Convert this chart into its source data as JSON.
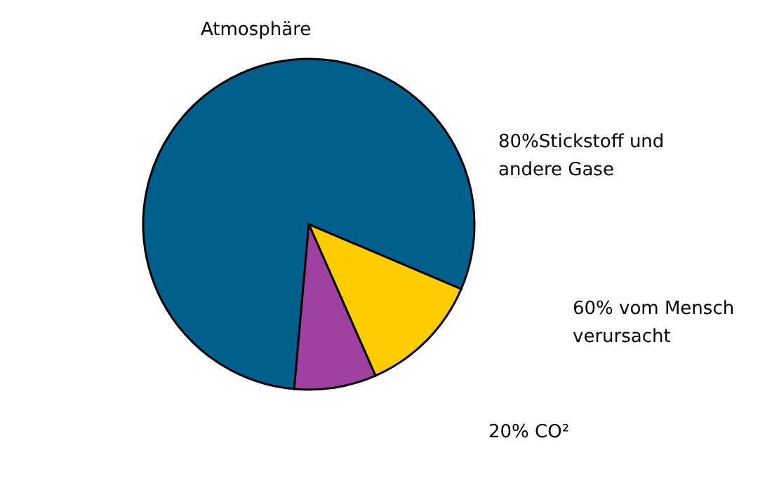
{
  "chart_data": {
    "type": "pie",
    "title": "Atmosphäre",
    "categories": [
      null,
      null,
      null
    ],
    "values": [
      80,
      12,
      8
    ],
    "colors": [
      "#005f8c",
      "#ffcc00",
      "#a040a0"
    ],
    "annotations": [
      "80%Stickstoff und\nandere Gase",
      "60% vom Mensch\nverursacht",
      "20% CO²"
    ]
  }
}
